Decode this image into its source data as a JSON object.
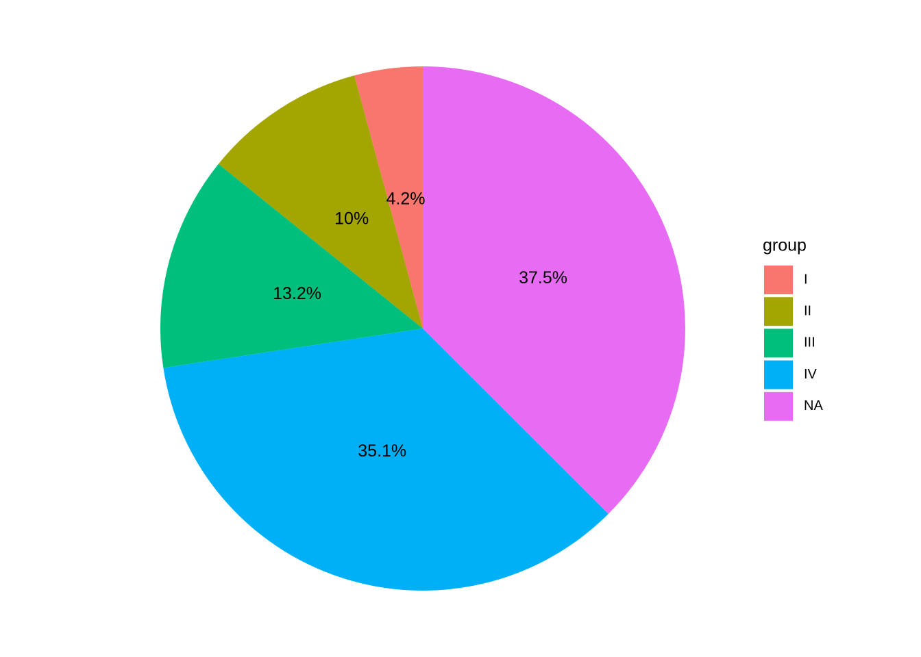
{
  "chart_data": {
    "type": "pie",
    "categories": [
      "I",
      "II",
      "III",
      "IV",
      "NA"
    ],
    "values": [
      4.2,
      10,
      13.2,
      35.1,
      37.5
    ],
    "value_labels": [
      "4.2%",
      "10%",
      "13.2%",
      "35.1%",
      "37.5%"
    ],
    "colors": [
      "#F8766D",
      "#A3A500",
      "#00BF7D",
      "#00B0F6",
      "#E76BF3"
    ],
    "legend_title": "group",
    "legend_position": "right"
  }
}
